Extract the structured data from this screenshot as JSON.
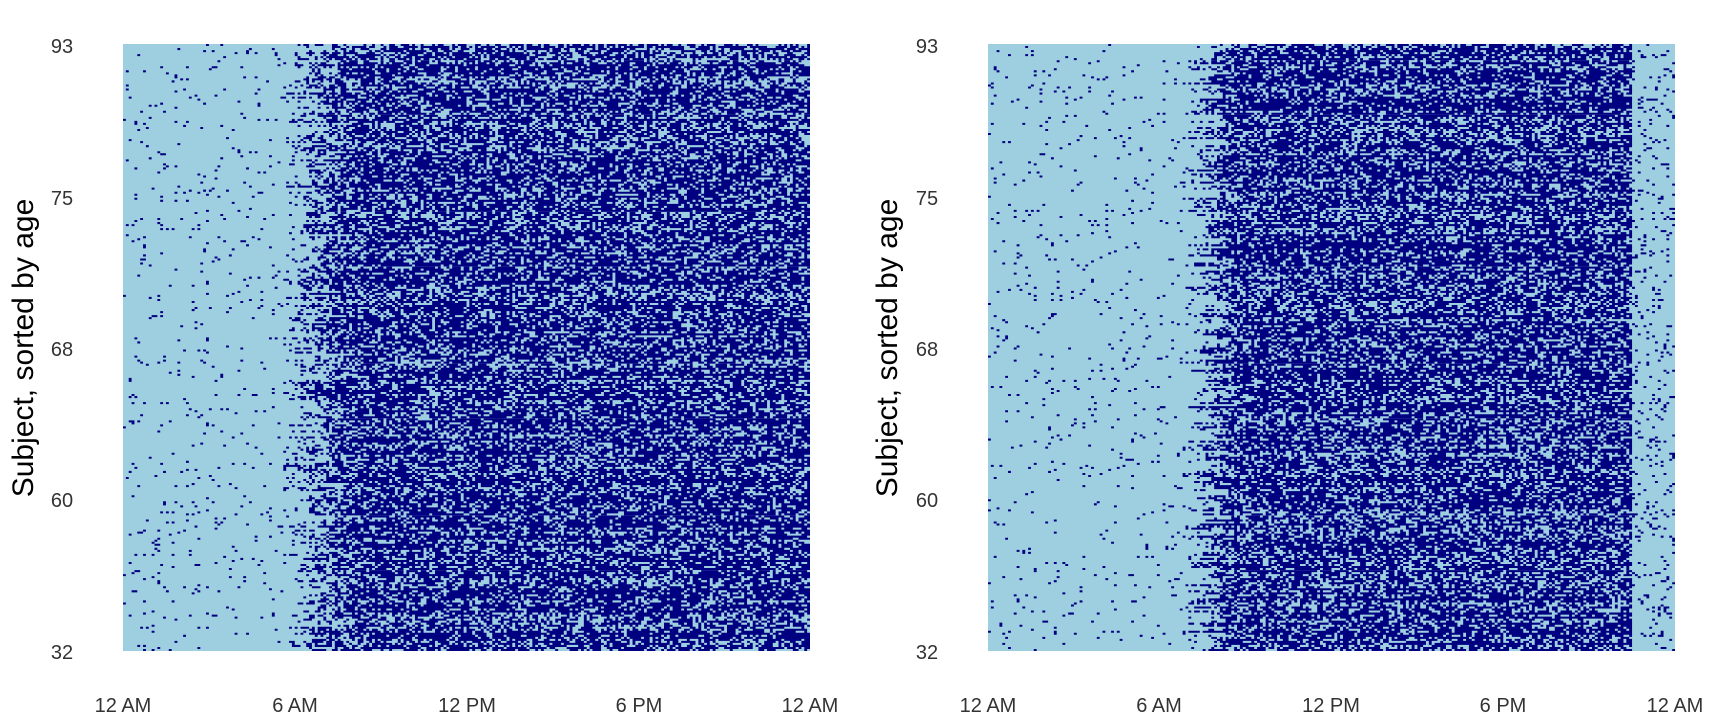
{
  "colors": {
    "inactive": "#9ecfe0",
    "active": "#000080",
    "tick_text": "#333333",
    "axis_title": "#000000",
    "background": "#ffffff"
  },
  "chart_data": [
    {
      "type": "heatmap",
      "title": "",
      "xlabel": "",
      "ylabel": "Subject, sorted by age",
      "x_tick_labels": [
        "12 AM",
        "6 AM",
        "12 PM",
        "6 PM",
        "12 AM"
      ],
      "x_range_hours": [
        0,
        24
      ],
      "y_tick_labels": [
        "32",
        "60",
        "68",
        "75",
        "93"
      ],
      "grid": false,
      "legend": "none",
      "description_values": {
        "activity_onset_hour": 6.2,
        "activity_offset_hour": 24,
        "peak_activity_start_hour": 7.5
      }
    },
    {
      "type": "heatmap",
      "title": "",
      "xlabel": "",
      "ylabel": "Subject, sorted by age",
      "x_tick_labels": [
        "12 AM",
        "6 AM",
        "12 PM",
        "6 PM",
        "12 AM"
      ],
      "x_range_hours": [
        0,
        24
      ],
      "y_tick_labels": [
        "32",
        "60",
        "68",
        "75",
        "93"
      ],
      "grid": false,
      "legend": "none",
      "description_values": {
        "activity_onset_hour": 7.5,
        "activity_offset_hour": 22.5,
        "peak_activity_start_hour": 8
      }
    }
  ]
}
